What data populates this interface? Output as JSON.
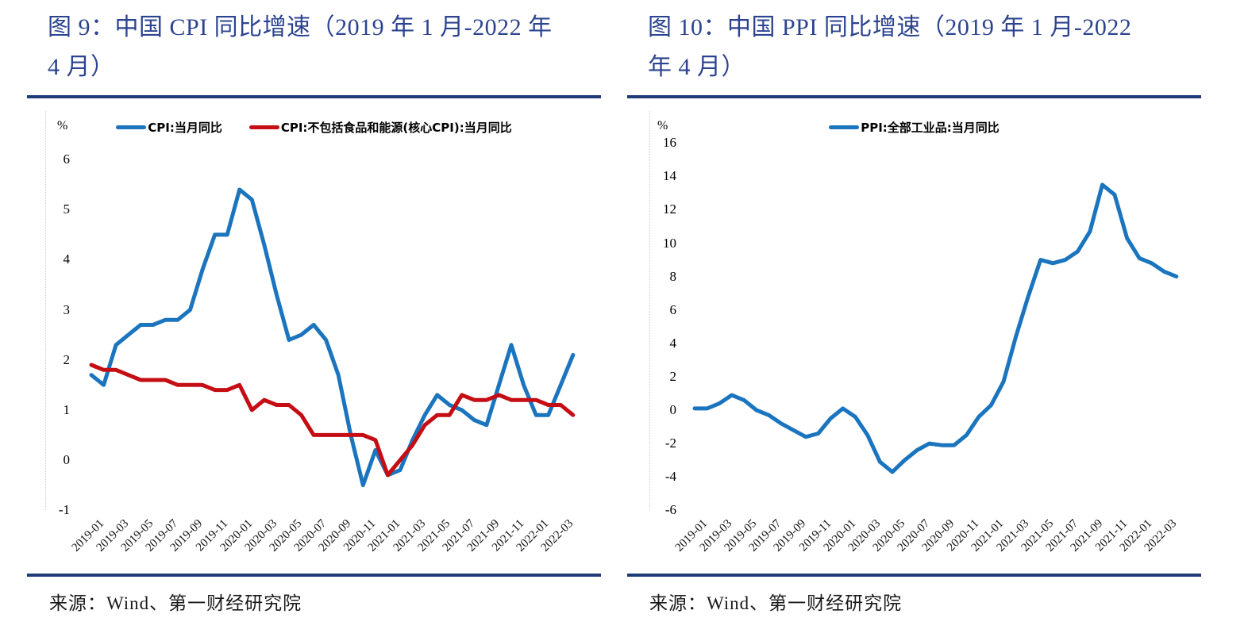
{
  "figures": [
    {
      "title_line1": "图 9：中国 CPI 同比增速（2019 年 1 月-2022 年",
      "title_line2": "4 月）",
      "source": "来源：Wind、第一财经研究院"
    },
    {
      "title_line1": "图 10：中国 PPI 同比增速（2019 年 1 月-2022",
      "title_line2": "年 4 月）",
      "source": "来源：Wind、第一财经研究院"
    }
  ],
  "chart_data": [
    {
      "type": "line",
      "title": "中国CPI同比增速（2019年1月-2022年4月）",
      "unit": "%",
      "grid": false,
      "legend_position": "top-center",
      "ylim": [
        -1,
        6
      ],
      "y_ticks": [
        6,
        5,
        4,
        3,
        2,
        1,
        0,
        -1
      ],
      "x": [
        "2019-01",
        "2019-02",
        "2019-03",
        "2019-04",
        "2019-05",
        "2019-06",
        "2019-07",
        "2019-08",
        "2019-09",
        "2019-10",
        "2019-11",
        "2019-12",
        "2020-01",
        "2020-02",
        "2020-03",
        "2020-04",
        "2020-05",
        "2020-06",
        "2020-07",
        "2020-08",
        "2020-09",
        "2020-10",
        "2020-11",
        "2020-12",
        "2021-01",
        "2021-02",
        "2021-03",
        "2021-04",
        "2021-05",
        "2021-06",
        "2021-07",
        "2021-08",
        "2021-09",
        "2021-10",
        "2021-11",
        "2021-12",
        "2022-01",
        "2022-02",
        "2022-03",
        "2022-04"
      ],
      "x_tick_labels": [
        "2019-01",
        "2019-03",
        "2019-05",
        "2019-07",
        "2019-09",
        "2019-11",
        "2020-01",
        "2020-03",
        "2020-05",
        "2020-07",
        "2020-09",
        "2020-11",
        "2021-01",
        "2021-03",
        "2021-05",
        "2021-07",
        "2021-09",
        "2021-11",
        "2022-01",
        "2022-03"
      ],
      "series": [
        {
          "name": "CPI:当月同比",
          "color": "#1B74BE",
          "values": [
            1.7,
            1.5,
            2.3,
            2.5,
            2.7,
            2.7,
            2.8,
            2.8,
            3.0,
            3.8,
            4.5,
            4.5,
            5.4,
            5.2,
            4.3,
            3.3,
            2.4,
            2.5,
            2.7,
            2.4,
            1.7,
            0.5,
            -0.5,
            0.2,
            -0.3,
            -0.2,
            0.4,
            0.9,
            1.3,
            1.1,
            1.0,
            0.8,
            0.7,
            1.5,
            2.3,
            1.5,
            0.9,
            0.9,
            1.5,
            2.1
          ]
        },
        {
          "name": "CPI:不包括食品和能源(核心CPI):当月同比",
          "color": "#C40E14",
          "values": [
            1.9,
            1.8,
            1.8,
            1.7,
            1.6,
            1.6,
            1.6,
            1.5,
            1.5,
            1.5,
            1.4,
            1.4,
            1.5,
            1.0,
            1.2,
            1.1,
            1.1,
            0.9,
            0.5,
            0.5,
            0.5,
            0.5,
            0.5,
            0.4,
            -0.3,
            0.0,
            0.3,
            0.7,
            0.9,
            0.9,
            1.3,
            1.2,
            1.2,
            1.3,
            1.2,
            1.2,
            1.2,
            1.1,
            1.1,
            0.9
          ]
        }
      ]
    },
    {
      "type": "line",
      "title": "中国PPI同比增速（2019年1月-2022年4月）",
      "unit": "%",
      "grid": false,
      "legend_position": "top-center",
      "ylim": [
        -6,
        16
      ],
      "y_ticks": [
        16,
        14,
        12,
        10,
        8,
        6,
        4,
        2,
        0,
        -2,
        -4,
        -6
      ],
      "x": [
        "2019-01",
        "2019-02",
        "2019-03",
        "2019-04",
        "2019-05",
        "2019-06",
        "2019-07",
        "2019-08",
        "2019-09",
        "2019-10",
        "2019-11",
        "2019-12",
        "2020-01",
        "2020-02",
        "2020-03",
        "2020-04",
        "2020-05",
        "2020-06",
        "2020-07",
        "2020-08",
        "2020-09",
        "2020-10",
        "2020-11",
        "2020-12",
        "2021-01",
        "2021-02",
        "2021-03",
        "2021-04",
        "2021-05",
        "2021-06",
        "2021-07",
        "2021-08",
        "2021-09",
        "2021-10",
        "2021-11",
        "2021-12",
        "2022-01",
        "2022-02",
        "2022-03",
        "2022-04"
      ],
      "x_tick_labels": [
        "2019-01",
        "2019-03",
        "2019-05",
        "2019-07",
        "2019-09",
        "2019-11",
        "2020-01",
        "2020-03",
        "2020-05",
        "2020-07",
        "2020-09",
        "2020-11",
        "2021-01",
        "2021-03",
        "2021-05",
        "2021-07",
        "2021-09",
        "2021-11",
        "2022-01",
        "2022-03"
      ],
      "series": [
        {
          "name": "PPI:全部工业品:当月同比",
          "color": "#1B74BE",
          "values": [
            0.1,
            0.1,
            0.4,
            0.9,
            0.6,
            0.0,
            -0.3,
            -0.8,
            -1.2,
            -1.6,
            -1.4,
            -0.5,
            0.1,
            -0.4,
            -1.5,
            -3.1,
            -3.7,
            -3.0,
            -2.4,
            -2.0,
            -2.1,
            -2.1,
            -1.5,
            -0.4,
            0.3,
            1.7,
            4.4,
            6.8,
            9.0,
            8.8,
            9.0,
            9.5,
            10.7,
            13.5,
            12.9,
            10.3,
            9.1,
            8.8,
            8.3,
            8.0
          ]
        }
      ]
    }
  ]
}
